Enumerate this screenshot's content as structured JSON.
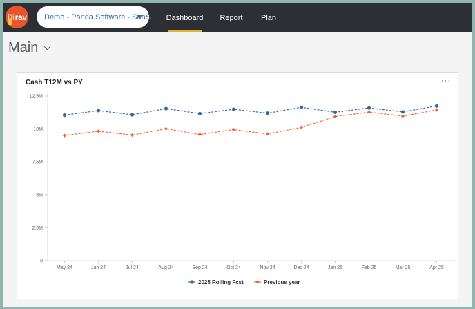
{
  "header": {
    "logo_text": "Dirav",
    "company_select": "Demo - Panda Software - SaaS",
    "tabs": [
      {
        "label": "Dashboard",
        "active": true
      },
      {
        "label": "Report",
        "active": false
      },
      {
        "label": "Plan",
        "active": false
      }
    ],
    "accent_color": "#e9b233",
    "bar_color": "#2c3035"
  },
  "page": {
    "title": "Main"
  },
  "card": {
    "menu_label": "···"
  },
  "chart_data": {
    "type": "line",
    "title": "Cash T12M vs PY",
    "xlabel": "",
    "ylabel": "",
    "ylim": [
      0,
      12500000
    ],
    "y_ticks": [
      0,
      2500000,
      5000000,
      7500000,
      10000000,
      12500000
    ],
    "y_tick_labels": [
      "0",
      "2.5M",
      "5M",
      "7.5M",
      "10M",
      "12.5M"
    ],
    "grid": false,
    "legend": "bottom-center",
    "categories": [
      "May 24",
      "Jun 24",
      "Jul 24",
      "Aug 24",
      "Sep 24",
      "Oct 24",
      "Nov 24",
      "Dec 24",
      "Jan 25",
      "Feb 25",
      "Mar 25",
      "Apr 25"
    ],
    "series": [
      {
        "name": "2025 Rolling Fcst",
        "color": "#2e6da4",
        "values": [
          11050000,
          11400000,
          11080000,
          11550000,
          11170000,
          11500000,
          11200000,
          11650000,
          11270000,
          11600000,
          11300000,
          11750000
        ]
      },
      {
        "name": "Previous year",
        "color": "#f0642c",
        "values": [
          9500000,
          9830000,
          9530000,
          10020000,
          9580000,
          9950000,
          9620000,
          10120000,
          10950000,
          11280000,
          10980000,
          11450000
        ]
      }
    ]
  }
}
